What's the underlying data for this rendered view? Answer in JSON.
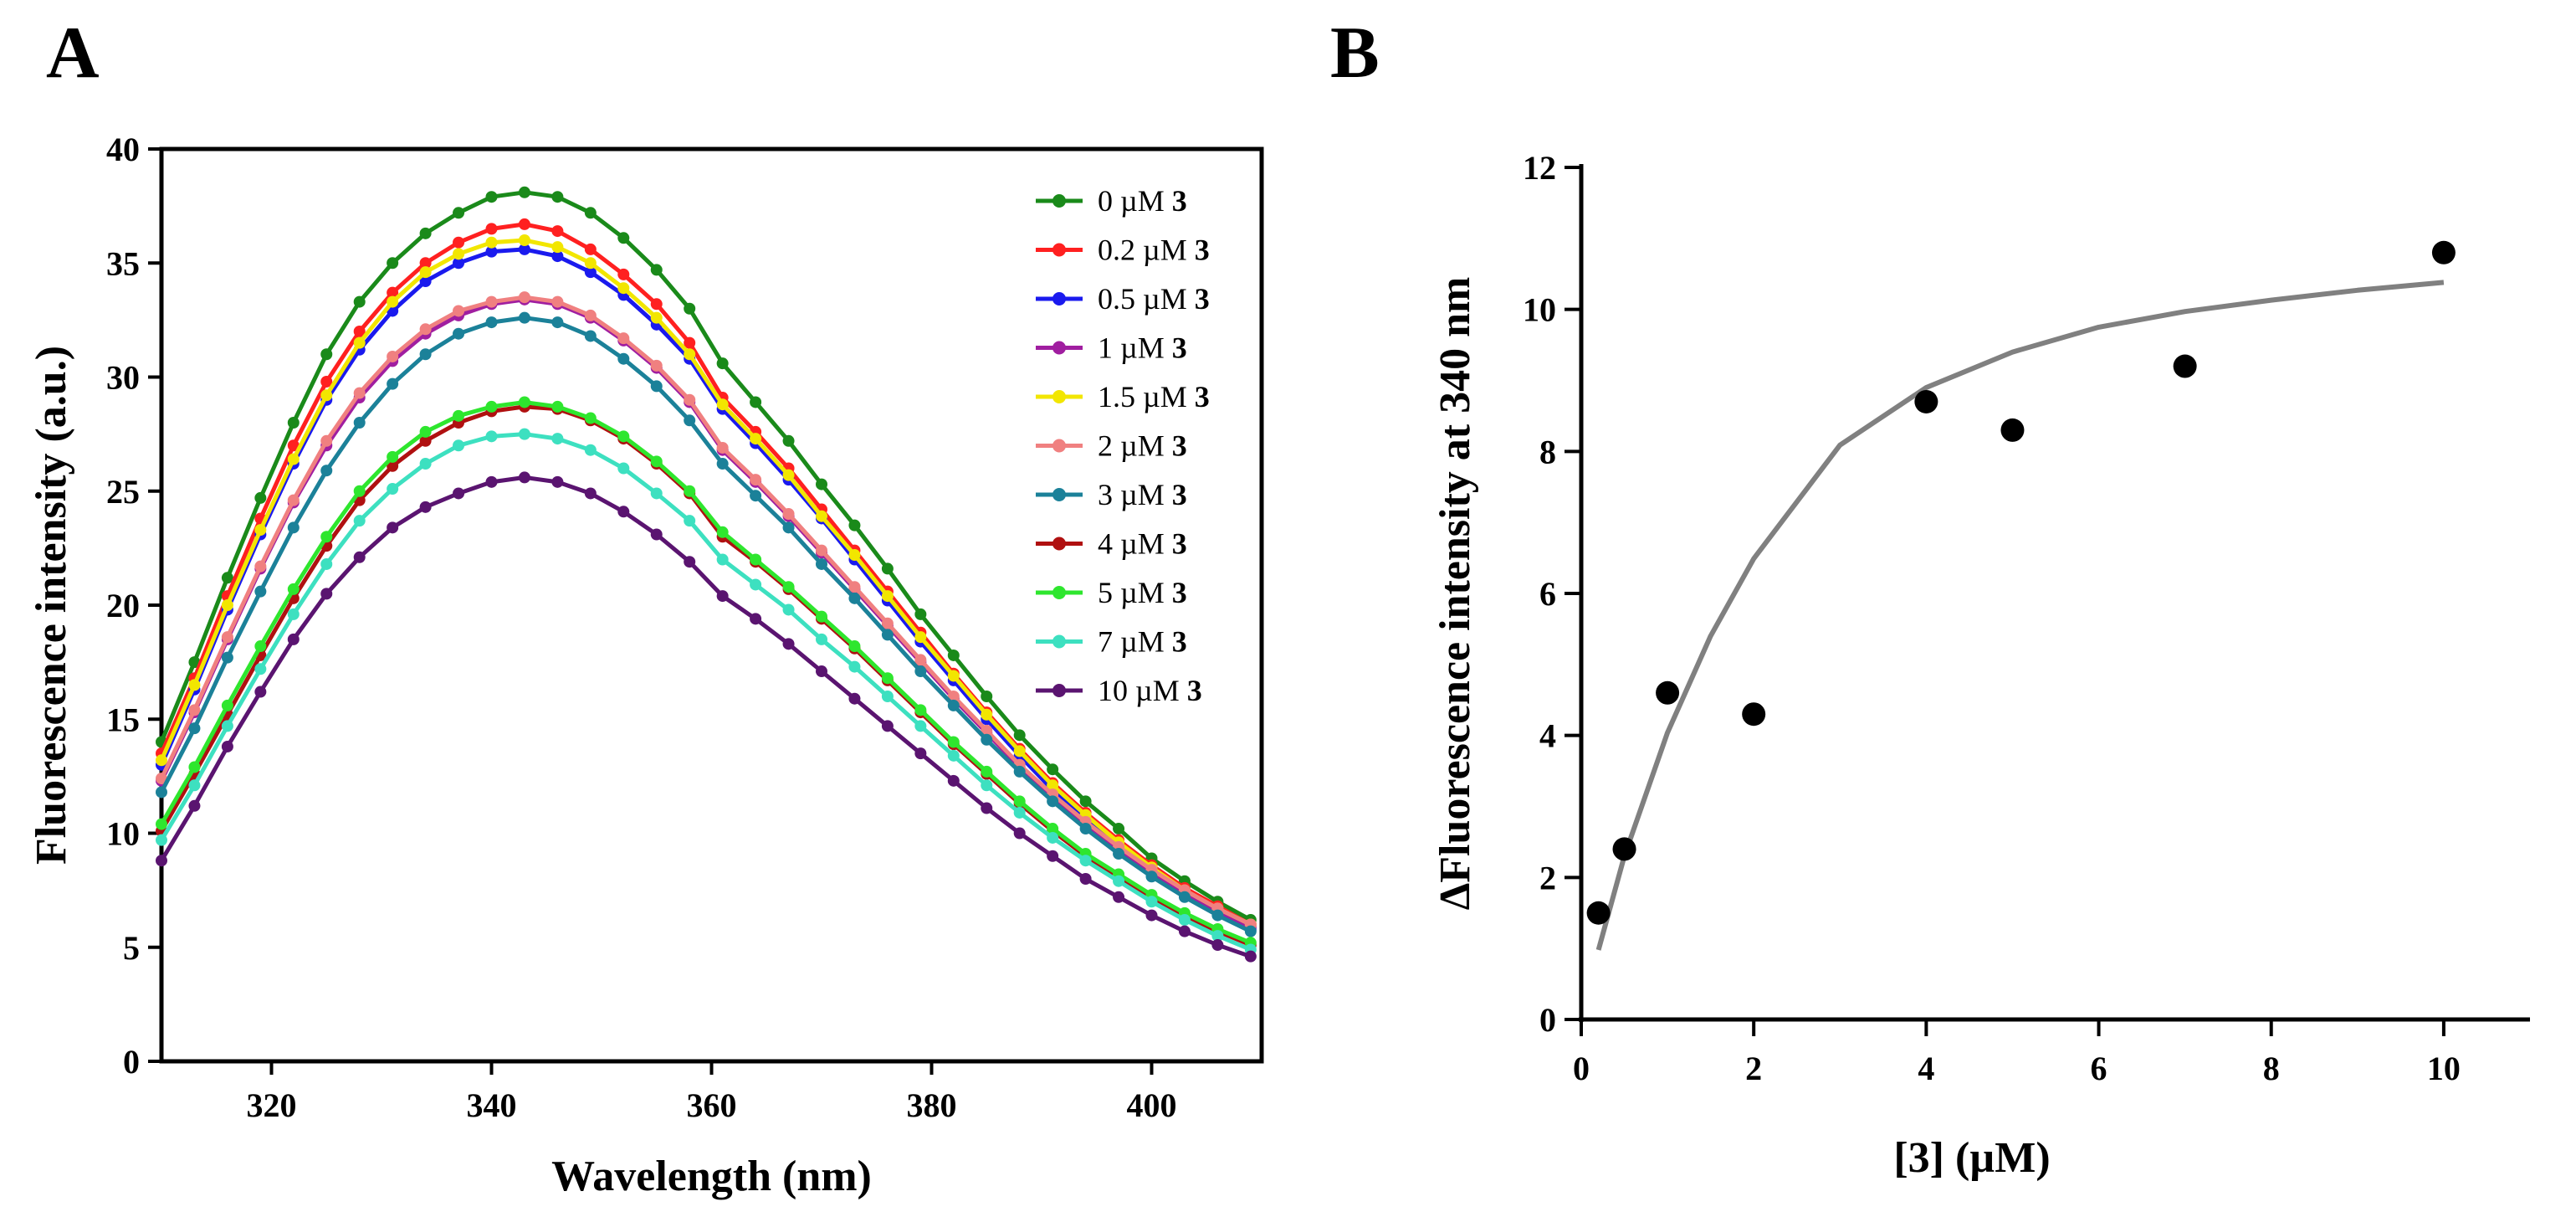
{
  "panels": {
    "a": {
      "letter": "A"
    },
    "b": {
      "letter": "B"
    }
  },
  "chart_data": [
    {
      "panel": "A",
      "type": "line",
      "xlabel": "Wavelength (nm)",
      "ylabel": "Fluorescence intensity (a.u.)",
      "xlim": [
        310,
        410
      ],
      "ylim": [
        0,
        40
      ],
      "xticks": [
        320,
        340,
        360,
        380,
        400
      ],
      "yticks": [
        0,
        5,
        10,
        15,
        20,
        25,
        30,
        35,
        40
      ],
      "legend_position": "top-right",
      "x": [
        310,
        313,
        316,
        319,
        322,
        325,
        328,
        331,
        334,
        337,
        340,
        343,
        346,
        349,
        352,
        355,
        358,
        361,
        364,
        367,
        370,
        373,
        376,
        379,
        382,
        385,
        388,
        391,
        394,
        397,
        400,
        403,
        406,
        409
      ],
      "series": [
        {
          "name": "0 µM",
          "compound": "3",
          "color": "#1a8a1a",
          "values": [
            14.0,
            17.5,
            21.2,
            24.7,
            28.0,
            31.0,
            33.3,
            35.0,
            36.3,
            37.2,
            37.9,
            38.1,
            37.9,
            37.2,
            36.1,
            34.7,
            33.0,
            30.6,
            28.9,
            27.2,
            25.3,
            23.5,
            21.6,
            19.6,
            17.8,
            16.0,
            14.3,
            12.8,
            11.4,
            10.2,
            8.9,
            7.9,
            7.0,
            6.2
          ]
        },
        {
          "name": "0.2 µM",
          "compound": "3",
          "color": "#ff2020",
          "values": [
            13.5,
            16.8,
            20.4,
            23.8,
            27.0,
            29.8,
            32.0,
            33.7,
            35.0,
            35.9,
            36.5,
            36.7,
            36.4,
            35.6,
            34.5,
            33.2,
            31.5,
            29.1,
            27.6,
            26.0,
            24.2,
            22.4,
            20.6,
            18.8,
            17.0,
            15.3,
            13.7,
            12.2,
            10.9,
            9.7,
            8.6,
            7.6,
            6.8,
            6.0
          ]
        },
        {
          "name": "0.5 µM",
          "compound": "3",
          "color": "#1a1aee",
          "values": [
            13.0,
            16.3,
            19.8,
            23.1,
            26.2,
            29.0,
            31.2,
            32.9,
            34.2,
            35.0,
            35.5,
            35.6,
            35.3,
            34.6,
            33.6,
            32.3,
            30.8,
            28.6,
            27.1,
            25.5,
            23.8,
            22.0,
            20.2,
            18.4,
            16.7,
            15.0,
            13.4,
            11.9,
            10.6,
            9.4,
            8.3,
            7.3,
            6.5,
            5.8
          ]
        },
        {
          "name": "1 µM",
          "compound": "3",
          "color": "#a01ea0",
          "values": [
            12.3,
            15.3,
            18.5,
            21.6,
            24.5,
            27.0,
            29.1,
            30.7,
            31.9,
            32.7,
            33.2,
            33.4,
            33.2,
            32.6,
            31.6,
            30.4,
            28.9,
            26.8,
            25.4,
            23.9,
            22.3,
            20.7,
            19.1,
            17.5,
            15.9,
            14.4,
            12.9,
            11.6,
            10.4,
            9.3,
            8.3,
            7.4,
            6.6,
            5.9
          ]
        },
        {
          "name": "1.5 µM",
          "compound": "3",
          "color": "#f2e600",
          "values": [
            13.2,
            16.5,
            20.0,
            23.3,
            26.4,
            29.2,
            31.5,
            33.3,
            34.6,
            35.4,
            35.9,
            36.0,
            35.7,
            35.0,
            33.9,
            32.6,
            31.0,
            28.8,
            27.3,
            25.7,
            23.9,
            22.2,
            20.4,
            18.6,
            16.9,
            15.2,
            13.6,
            12.1,
            10.8,
            9.6,
            8.5,
            7.5,
            6.7,
            6.0
          ]
        },
        {
          "name": "2 µM",
          "compound": "3",
          "color": "#f08080",
          "values": [
            12.4,
            15.4,
            18.6,
            21.7,
            24.6,
            27.2,
            29.3,
            30.9,
            32.1,
            32.9,
            33.3,
            33.5,
            33.3,
            32.7,
            31.7,
            30.5,
            29.0,
            26.9,
            25.5,
            24.0,
            22.4,
            20.8,
            19.2,
            17.6,
            16.0,
            14.5,
            13.0,
            11.7,
            10.5,
            9.4,
            8.4,
            7.5,
            6.7,
            6.0
          ]
        },
        {
          "name": "3 µM",
          "compound": "3",
          "color": "#1b8199",
          "values": [
            11.8,
            14.6,
            17.7,
            20.6,
            23.4,
            25.9,
            28.0,
            29.7,
            31.0,
            31.9,
            32.4,
            32.6,
            32.4,
            31.8,
            30.8,
            29.6,
            28.1,
            26.2,
            24.8,
            23.4,
            21.8,
            20.3,
            18.7,
            17.1,
            15.6,
            14.1,
            12.7,
            11.4,
            10.2,
            9.1,
            8.1,
            7.2,
            6.4,
            5.7
          ]
        },
        {
          "name": "4 µM",
          "compound": "3",
          "color": "#b01010",
          "values": [
            10.1,
            12.6,
            15.2,
            17.8,
            20.3,
            22.6,
            24.6,
            26.1,
            27.2,
            28.0,
            28.5,
            28.7,
            28.6,
            28.1,
            27.3,
            26.2,
            24.9,
            23.0,
            21.9,
            20.7,
            19.4,
            18.1,
            16.7,
            15.3,
            13.9,
            12.6,
            11.3,
            10.1,
            9.0,
            8.1,
            7.2,
            6.4,
            5.7,
            5.1
          ]
        },
        {
          "name": "5 µM",
          "compound": "3",
          "color": "#2ee62e",
          "values": [
            10.4,
            12.9,
            15.6,
            18.2,
            20.7,
            23.0,
            25.0,
            26.5,
            27.6,
            28.3,
            28.7,
            28.9,
            28.7,
            28.2,
            27.4,
            26.3,
            25.0,
            23.2,
            22.0,
            20.8,
            19.5,
            18.2,
            16.8,
            15.4,
            14.0,
            12.7,
            11.4,
            10.2,
            9.1,
            8.2,
            7.3,
            6.5,
            5.8,
            5.2
          ]
        },
        {
          "name": "7 µM",
          "compound": "3",
          "color": "#3de0c0",
          "values": [
            9.7,
            12.1,
            14.7,
            17.2,
            19.6,
            21.8,
            23.7,
            25.1,
            26.2,
            27.0,
            27.4,
            27.5,
            27.3,
            26.8,
            26.0,
            24.9,
            23.7,
            22.0,
            20.9,
            19.8,
            18.5,
            17.3,
            16.0,
            14.7,
            13.4,
            12.1,
            10.9,
            9.8,
            8.8,
            7.9,
            7.0,
            6.2,
            5.5,
            4.9
          ]
        },
        {
          "name": "10 µM",
          "compound": "3",
          "color": "#5a1470",
          "values": [
            8.8,
            11.2,
            13.8,
            16.2,
            18.5,
            20.5,
            22.1,
            23.4,
            24.3,
            24.9,
            25.4,
            25.6,
            25.4,
            24.9,
            24.1,
            23.1,
            21.9,
            20.4,
            19.4,
            18.3,
            17.1,
            15.9,
            14.7,
            13.5,
            12.3,
            11.1,
            10.0,
            9.0,
            8.0,
            7.2,
            6.4,
            5.7,
            5.1,
            4.6
          ]
        }
      ]
    },
    {
      "panel": "B",
      "type": "scatter",
      "xlabel": "[3] (µM)",
      "ylabel": "ΔFluorescence intensity at 340 nm",
      "xlim": [
        0,
        11
      ],
      "ylim": [
        0,
        12
      ],
      "xticks": [
        0,
        2,
        4,
        6,
        8,
        10
      ],
      "yticks": [
        0,
        2,
        4,
        6,
        8,
        10,
        12
      ],
      "points": {
        "x": [
          0.2,
          0.5,
          1,
          2,
          4,
          5,
          7,
          10
        ],
        "y": [
          1.5,
          2.4,
          4.6,
          4.3,
          8.7,
          8.3,
          9.2,
          10.8
        ]
      },
      "fit": {
        "type": "hyperbolic",
        "color": "#808080",
        "x": [
          0.2,
          0.5,
          1,
          1.5,
          2,
          3,
          4,
          5,
          6,
          7,
          8,
          9,
          10
        ],
        "y": [
          0.98,
          2.3,
          4.04,
          5.4,
          6.49,
          8.09,
          8.9,
          9.4,
          9.75,
          9.97,
          10.13,
          10.27,
          10.38
        ]
      }
    }
  ]
}
